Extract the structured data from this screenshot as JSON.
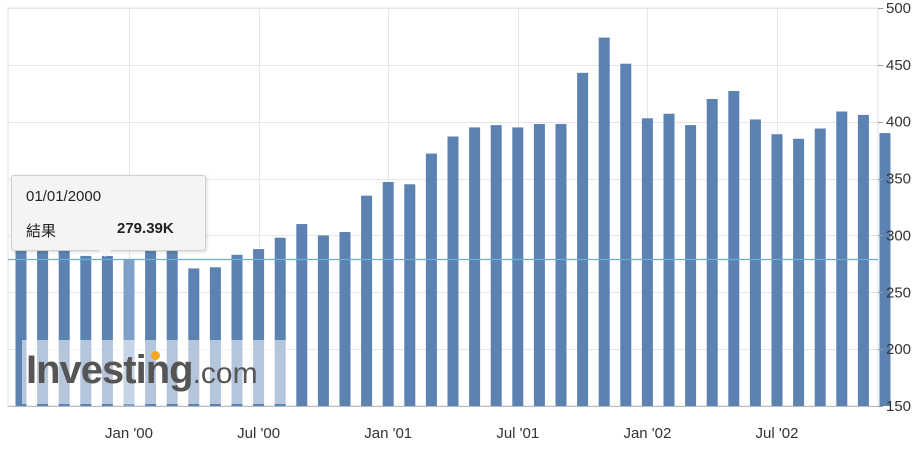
{
  "chart_data": {
    "type": "bar",
    "x": [
      "1999-08",
      "1999-09",
      "1999-10",
      "1999-11",
      "1999-12",
      "2000-01",
      "2000-02",
      "2000-03",
      "2000-04",
      "2000-05",
      "2000-06",
      "2000-07",
      "2000-08",
      "2000-09",
      "2000-10",
      "2000-11",
      "2000-12",
      "2001-01",
      "2001-02",
      "2001-03",
      "2001-04",
      "2001-05",
      "2001-06",
      "2001-07",
      "2001-08",
      "2001-09",
      "2001-10",
      "2001-11",
      "2001-12",
      "2002-01",
      "2002-02",
      "2002-03",
      "2002-04",
      "2002-05",
      "2002-06",
      "2002-07",
      "2002-08",
      "2002-09",
      "2002-10",
      "2002-11",
      "2002-12"
    ],
    "values": [
      290,
      290,
      290,
      282,
      282,
      279.39,
      291,
      291,
      271,
      272,
      283,
      288,
      298,
      310,
      300,
      303,
      335,
      347,
      345,
      372,
      387,
      395,
      397,
      395,
      398,
      398,
      443,
      474,
      451,
      403,
      407,
      397,
      420,
      427,
      402,
      389,
      385,
      394,
      409,
      406,
      390
    ],
    "x_tick_labels": [
      "Jan '00",
      "Jul '00",
      "Jan '01",
      "Jul '01",
      "Jan '02",
      "Jul '02"
    ],
    "ylim": [
      150,
      500
    ],
    "y_ticks": [
      150,
      200,
      250,
      300,
      350,
      400,
      450,
      500
    ],
    "reference_line": 279.39,
    "grid": true,
    "colors": {
      "bar": "#5b82b1",
      "bar_highlight": "#7fa0c8",
      "ref_line": "#6aaed6",
      "grid": "#e6e6e6"
    }
  },
  "tooltip": {
    "date": "01/01/2000",
    "label": "結果",
    "value": "279.39K"
  },
  "watermark": {
    "brand": "Investing",
    "suffix": ".com"
  }
}
